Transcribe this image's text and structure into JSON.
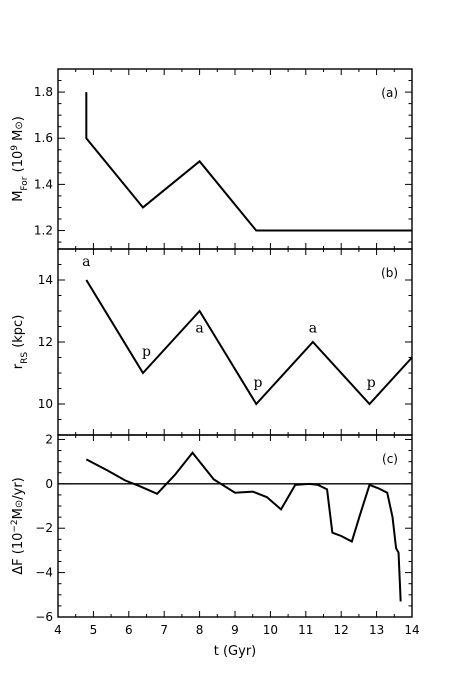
{
  "chart_data": [
    {
      "type": "line",
      "panel_label": "(a)",
      "ylabel_html": "M<tspan baseline-shift='sub' font-size='9'>For</tspan> (10<tspan baseline-shift='super' font-size='9'>9</tspan> M<tspan font-size='10'>⊙</tspan>)",
      "ylim": [
        1.12,
        1.9
      ],
      "yticks": [
        1.2,
        1.4,
        1.6,
        1.8
      ],
      "ytick_labels": [
        "1.2",
        "1.4",
        "1.6",
        "1.8"
      ],
      "xlim": [
        4,
        14
      ],
      "series": [
        {
          "x": [
            4.8,
            4.8,
            6.4,
            8.0,
            9.6,
            14.0
          ],
          "y": [
            1.8,
            1.6,
            1.3,
            1.5,
            1.2,
            1.2
          ]
        }
      ],
      "annotations": []
    },
    {
      "type": "line",
      "panel_label": "(b)",
      "ylabel_html": "r<tspan baseline-shift='sub' font-size='9'>RS</tspan> (kpc)",
      "ylim": [
        9.0,
        15.0
      ],
      "yticks": [
        10,
        12,
        14
      ],
      "ytick_labels": [
        "10",
        "12",
        "14"
      ],
      "xlim": [
        4,
        14
      ],
      "series": [
        {
          "x": [
            4.8,
            6.4,
            8.0,
            9.6,
            11.2,
            12.8,
            14.0
          ],
          "y": [
            14,
            11,
            13,
            10,
            12,
            10,
            11.5
          ]
        }
      ],
      "annotations": [
        {
          "text": "a",
          "x": 4.8,
          "y": 14.45
        },
        {
          "text": "p",
          "x": 6.5,
          "y": 11.55
        },
        {
          "text": "a",
          "x": 8.0,
          "y": 12.3
        },
        {
          "text": "p",
          "x": 9.65,
          "y": 10.55
        },
        {
          "text": "a",
          "x": 11.2,
          "y": 12.3
        },
        {
          "text": "p",
          "x": 12.85,
          "y": 10.55
        }
      ]
    },
    {
      "type": "line",
      "panel_label": "(c)",
      "ylabel_html": "ΔF (10<tspan baseline-shift='super' font-size='9'>−2</tspan>M<tspan font-size='10'>⊙</tspan>/yr)",
      "ylim": [
        -6.0,
        2.2
      ],
      "yticks": [
        -6,
        -4,
        -2,
        0,
        2
      ],
      "ytick_labels": [
        "−6",
        "−4",
        "−2",
        "0",
        "2"
      ],
      "xlim": [
        4,
        14
      ],
      "zero_line": true,
      "series": [
        {
          "x": [
            4.8,
            5.4,
            5.9,
            6.3,
            6.8,
            7.3,
            7.8,
            8.4,
            9.0,
            9.5,
            9.9,
            10.3,
            10.7,
            11.1,
            11.35,
            11.6,
            11.75,
            12.0,
            12.3,
            12.55,
            12.8,
            13.05,
            13.3,
            13.45,
            13.55,
            13.62,
            13.68
          ],
          "y": [
            1.1,
            0.6,
            0.15,
            -0.1,
            -0.45,
            0.4,
            1.4,
            0.2,
            -0.4,
            -0.35,
            -0.6,
            -1.15,
            -0.05,
            0.0,
            -0.05,
            -0.25,
            -2.2,
            -2.35,
            -2.6,
            -1.3,
            -0.05,
            -0.2,
            -0.4,
            -1.5,
            -2.9,
            -3.1,
            -5.3
          ]
        }
      ],
      "annotations": []
    }
  ],
  "xaxis": {
    "xlabel": "t (Gyr)",
    "xticks": [
      4,
      5,
      6,
      7,
      8,
      9,
      10,
      11,
      12,
      13,
      14
    ],
    "xtick_labels": [
      "4",
      "5",
      "6",
      "7",
      "8",
      "9",
      "10",
      "11",
      "12",
      "13",
      "14"
    ]
  }
}
